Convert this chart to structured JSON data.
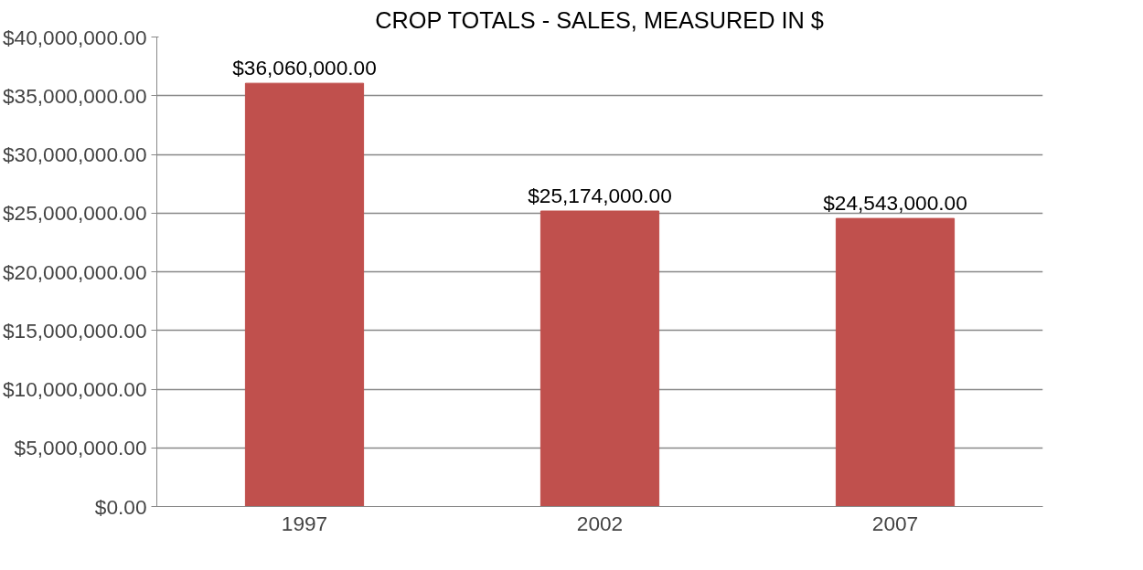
{
  "chart_data": {
    "type": "bar",
    "title": "CROP TOTALS - SALES, MEASURED IN $",
    "categories": [
      "1997",
      "2002",
      "2007"
    ],
    "values": [
      36060000,
      25174000,
      24543000
    ],
    "value_labels": [
      "$36,060,000.00",
      "$25,174,000.00",
      "$24,543,000.00"
    ],
    "color": "#c0504d",
    "ylim": [
      0,
      40000000
    ],
    "yticks": [
      {
        "value": 0,
        "label": "$0.00"
      },
      {
        "value": 5000000,
        "label": "$5,000,000.00"
      },
      {
        "value": 10000000,
        "label": "$10,000,000.00"
      },
      {
        "value": 15000000,
        "label": "$15,000,000.00"
      },
      {
        "value": 20000000,
        "label": "$20,000,000.00"
      },
      {
        "value": 25000000,
        "label": "$25,000,000.00"
      },
      {
        "value": 30000000,
        "label": "$30,000,000.00"
      },
      {
        "value": 35000000,
        "label": "$35,000,000.00"
      },
      {
        "value": 40000000,
        "label": "$40,000,000.00"
      }
    ],
    "grid": "y"
  }
}
